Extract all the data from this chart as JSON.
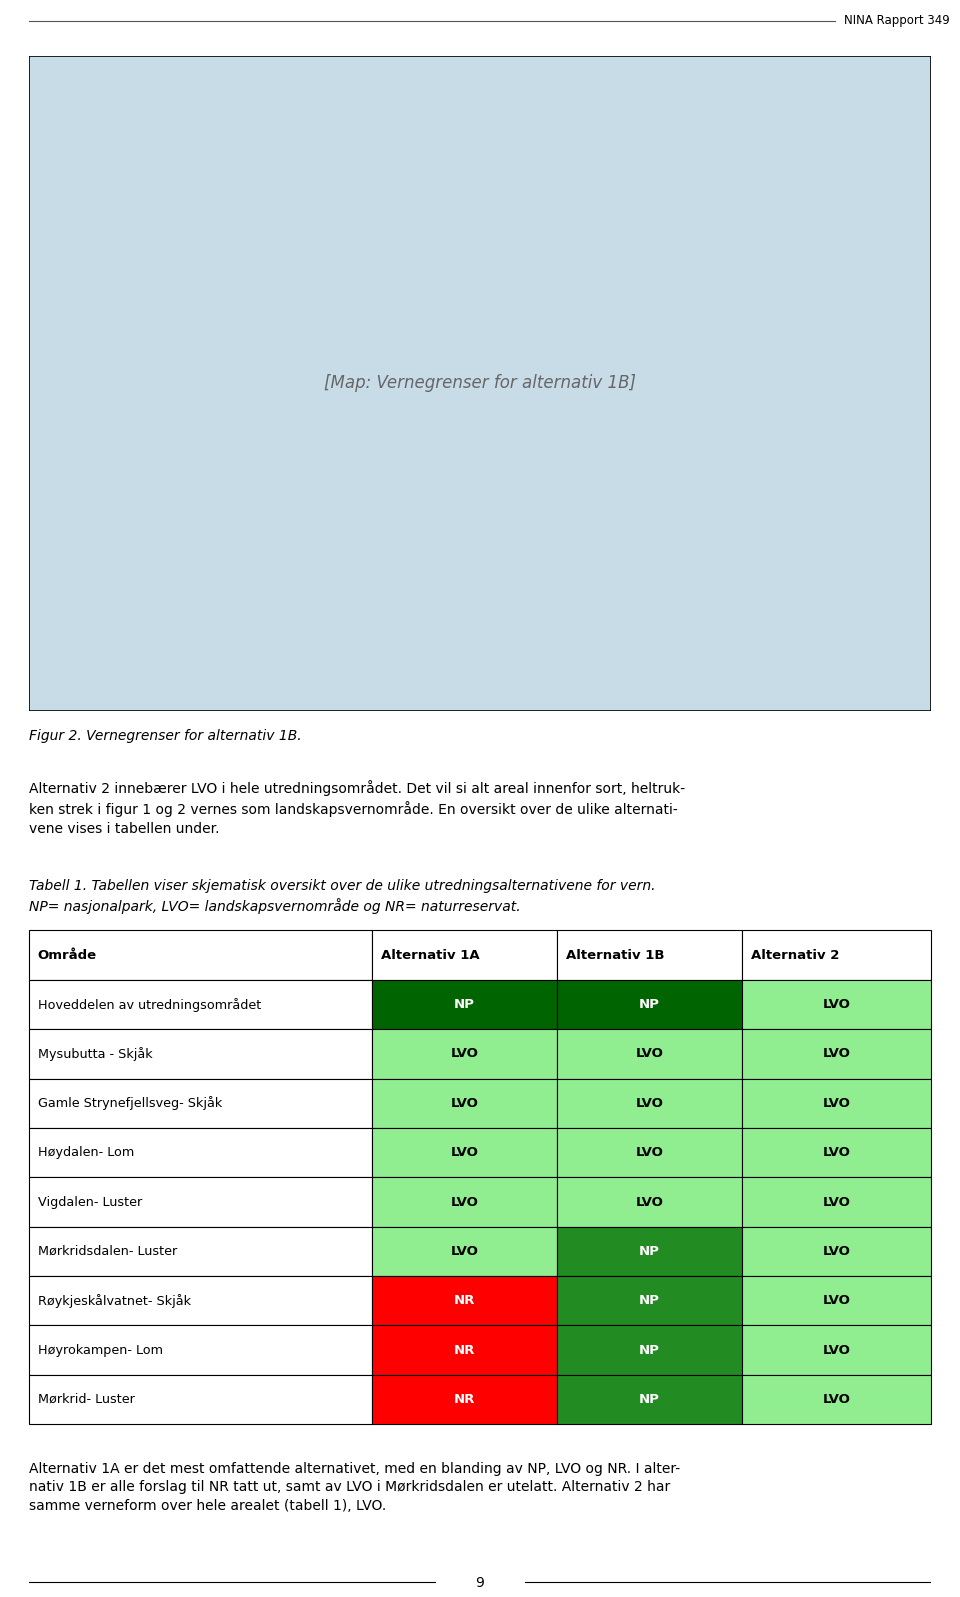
{
  "page_bg": "#ffffff",
  "header_line_color": "#000000",
  "header_text": "NINA Rapport 349",
  "header_text_color": "#000000",
  "header_fontsize": 9,
  "fig_caption": "Figur 2. Vernegrenser for alternativ 1B.",
  "fig_caption_fontsize": 10,
  "para1": "Alternativ 2 innebærer LVO i hele utredningsområdet. Det vil si alt areal innenfor sort, heltruk-\nken strek i figur 1 og 2 vernes som landskapsvernområde. En oversikt over de ulike alternati-\nvene vises i tabellen under.",
  "para1_fontsize": 10,
  "table_caption_italic": "Tabell 1. Tabellen viser skjematisk oversikt over de ulike utredningsalternativene for vern.\nNP= nasjonalpark, LVO= landskapsvernområde og NR= naturreservat.",
  "table_caption_fontsize": 10,
  "table_header": [
    "Område",
    "Alternativ 1A",
    "Alternativ 1B",
    "Alternativ 2"
  ],
  "table_rows": [
    [
      "Hoveddelen av utredningsområdet",
      "NP",
      "NP",
      "LVO"
    ],
    [
      "Mysubutta - Skjåk",
      "LVO",
      "LVO",
      "LVO"
    ],
    [
      "Gamle Strynefjellsveg- Skjåk",
      "LVO",
      "LVO",
      "LVO"
    ],
    [
      "Høydalen- Lom",
      "LVO",
      "LVO",
      "LVO"
    ],
    [
      "Vigdalen- Luster",
      "LVO",
      "LVO",
      "LVO"
    ],
    [
      "Mørkridsdalen- Luster",
      "LVO",
      "NP",
      "LVO"
    ],
    [
      "Røykjeskålvatnet- Skjåk",
      "NR",
      "NP",
      "LVO"
    ],
    [
      "Høyrokampen- Lom",
      "NR",
      "NP",
      "LVO"
    ],
    [
      "Mørkrid- Luster",
      "NR",
      "NP",
      "LVO"
    ]
  ],
  "color_NP_dark": "#006400",
  "color_NP_medium": "#228B22",
  "color_LVO_light": "#90EE90",
  "color_LVO_lighter": "#98FB98",
  "color_NR_red": "#FF0000",
  "color_header_bg": "#ffffff",
  "color_border": "#000000",
  "cell_colors": {
    "row0": [
      "#ffffff",
      "#006400",
      "#006400",
      "#90EE90"
    ],
    "row1": [
      "#ffffff",
      "#90EE90",
      "#90EE90",
      "#90EE90"
    ],
    "row2": [
      "#ffffff",
      "#90EE90",
      "#90EE90",
      "#90EE90"
    ],
    "row3": [
      "#ffffff",
      "#90EE90",
      "#90EE90",
      "#90EE90"
    ],
    "row4": [
      "#ffffff",
      "#90EE90",
      "#90EE90",
      "#90EE90"
    ],
    "row5": [
      "#ffffff",
      "#90EE90",
      "#228B22",
      "#90EE90"
    ],
    "row6": [
      "#ffffff",
      "#FF0000",
      "#228B22",
      "#90EE90"
    ],
    "row7": [
      "#ffffff",
      "#FF0000",
      "#228B22",
      "#90EE90"
    ],
    "row8": [
      "#ffffff",
      "#FF0000",
      "#228B22",
      "#90EE90"
    ]
  },
  "text_colors": {
    "row0": [
      "#000000",
      "#ffffff",
      "#ffffff",
      "#000000"
    ],
    "row1": [
      "#000000",
      "#000000",
      "#000000",
      "#000000"
    ],
    "row2": [
      "#000000",
      "#000000",
      "#000000",
      "#000000"
    ],
    "row3": [
      "#000000",
      "#000000",
      "#000000",
      "#000000"
    ],
    "row4": [
      "#000000",
      "#000000",
      "#000000",
      "#000000"
    ],
    "row5": [
      "#000000",
      "#000000",
      "#ffffff",
      "#000000"
    ],
    "row6": [
      "#000000",
      "#ffffff",
      "#ffffff",
      "#000000"
    ],
    "row7": [
      "#000000",
      "#ffffff",
      "#ffffff",
      "#000000"
    ],
    "row8": [
      "#000000",
      "#ffffff",
      "#ffffff",
      "#000000"
    ]
  },
  "para2": "Alternativ 1A er det mest omfattende alternativet, med en blanding av NP, LVO og NR. I alter-\nnativ 1B er alle forslag til NR tatt ut, samt av LVO i Mørkridsdalen er utelatt. Alternativ 2 har\nsamme verneform over hele arealet (tabell 1), LVO.",
  "para2_fontsize": 10,
  "footer_page": "9",
  "map_placeholder_color": "#d0e8f0"
}
